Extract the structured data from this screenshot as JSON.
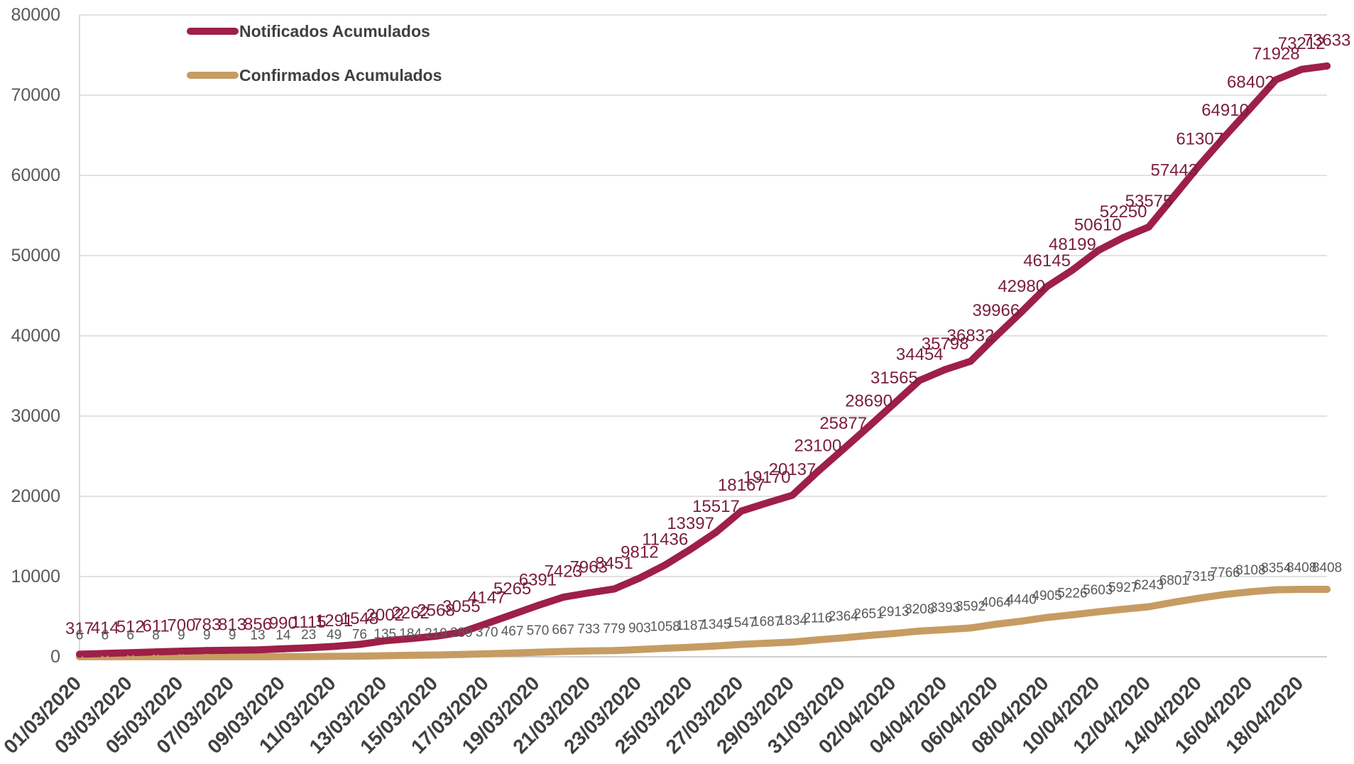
{
  "chart_data": {
    "type": "line",
    "x_tick_labels": [
      "01/03/2020",
      "03/03/2020",
      "05/03/2020",
      "07/03/2020",
      "09/03/2020",
      "11/03/2020",
      "13/03/2020",
      "15/03/2020",
      "17/03/2020",
      "19/03/2020",
      "21/03/2020",
      "23/03/2020",
      "25/03/2020",
      "27/03/2020",
      "29/03/2020",
      "31/03/2020",
      "02/04/2020",
      "04/04/2020",
      "06/04/2020",
      "08/04/2020",
      "10/04/2020",
      "12/04/2020",
      "14/04/2020",
      "16/04/2020",
      "18/04/2020"
    ],
    "y_ticks": [
      0,
      10000,
      20000,
      30000,
      40000,
      50000,
      60000,
      70000,
      80000
    ],
    "ylim": [
      0,
      80000
    ],
    "grid": true,
    "legend": "top-left",
    "data_labels": true,
    "series": [
      {
        "name": "Notificados Acumulados",
        "color": "#9E1F47",
        "label_color": "#7A1D3C",
        "values": [
          317,
          414,
          512,
          611,
          700,
          783,
          813,
          856,
          990,
          1115,
          1291,
          1548,
          2002,
          2262,
          2568,
          3055,
          4147,
          5265,
          6391,
          7423,
          7963,
          8451,
          9812,
          11436,
          13397,
          15517,
          18167,
          19170,
          20137,
          23100,
          25877,
          28690,
          31565,
          34454,
          35798,
          36832,
          39966,
          42980,
          46145,
          48199,
          50610,
          52250,
          53575,
          57443,
          61307,
          64910,
          68402,
          71928,
          73212,
          73633
        ]
      },
      {
        "name": "Confirmados Acumulados",
        "color": "#C69C62",
        "label_color": "#595959",
        "values": [
          6,
          6,
          6,
          8,
          9,
          9,
          9,
          13,
          14,
          23,
          49,
          76,
          135,
          184,
          219,
          289,
          370,
          467,
          570,
          667,
          733,
          779,
          903,
          1058,
          1187,
          1345,
          1547,
          1687,
          1834,
          2116,
          2364,
          2651,
          2913,
          3208,
          3393,
          3592,
          4064,
          4440,
          4905,
          5226,
          5603,
          5927,
          6243,
          6801,
          7315,
          7766,
          8108,
          8354,
          8408,
          8408
        ]
      }
    ]
  }
}
